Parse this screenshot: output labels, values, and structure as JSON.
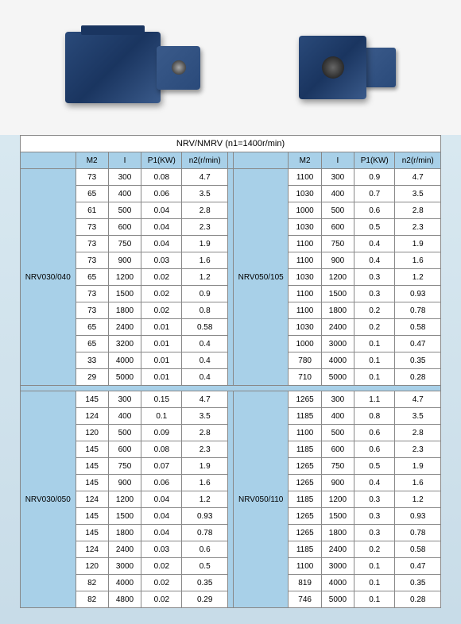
{
  "title": "NRV/NMRV  (n1=1400r/min)",
  "headers": [
    "M2",
    "I",
    "P1(KW)",
    "n2(r/min)"
  ],
  "groups": [
    {
      "label": "NRV030/040",
      "rows": [
        [
          "73",
          "300",
          "0.08",
          "4.7"
        ],
        [
          "65",
          "400",
          "0.06",
          "3.5"
        ],
        [
          "61",
          "500",
          "0.04",
          "2.8"
        ],
        [
          "73",
          "600",
          "0.04",
          "2.3"
        ],
        [
          "73",
          "750",
          "0.04",
          "1.9"
        ],
        [
          "73",
          "900",
          "0.03",
          "1.6"
        ],
        [
          "65",
          "1200",
          "0.02",
          "1.2"
        ],
        [
          "73",
          "1500",
          "0.02",
          "0.9"
        ],
        [
          "73",
          "1800",
          "0.02",
          "0.8"
        ],
        [
          "65",
          "2400",
          "0.01",
          "0.58"
        ],
        [
          "65",
          "3200",
          "0.01",
          "0.4"
        ],
        [
          "33",
          "4000",
          "0.01",
          "0.4"
        ],
        [
          "29",
          "5000",
          "0.01",
          "0.4"
        ]
      ]
    },
    {
      "label": "NRV050/105",
      "rows": [
        [
          "1100",
          "300",
          "0.9",
          "4.7"
        ],
        [
          "1030",
          "400",
          "0.7",
          "3.5"
        ],
        [
          "1000",
          "500",
          "0.6",
          "2.8"
        ],
        [
          "1030",
          "600",
          "0.5",
          "2.3"
        ],
        [
          "1100",
          "750",
          "0.4",
          "1.9"
        ],
        [
          "1100",
          "900",
          "0.4",
          "1.6"
        ],
        [
          "1030",
          "1200",
          "0.3",
          "1.2"
        ],
        [
          "1100",
          "1500",
          "0.3",
          "0.93"
        ],
        [
          "1100",
          "1800",
          "0.2",
          "0.78"
        ],
        [
          "1030",
          "2400",
          "0.2",
          "0.58"
        ],
        [
          "1000",
          "3000",
          "0.1",
          "0.47"
        ],
        [
          "780",
          "4000",
          "0.1",
          "0.35"
        ],
        [
          "710",
          "5000",
          "0.1",
          "0.28"
        ]
      ]
    },
    {
      "label": "NRV030/050",
      "rows": [
        [
          "145",
          "300",
          "0.15",
          "4.7"
        ],
        [
          "124",
          "400",
          "0.1",
          "3.5"
        ],
        [
          "120",
          "500",
          "0.09",
          "2.8"
        ],
        [
          "145",
          "600",
          "0.08",
          "2.3"
        ],
        [
          "145",
          "750",
          "0.07",
          "1.9"
        ],
        [
          "145",
          "900",
          "0.06",
          "1.6"
        ],
        [
          "124",
          "1200",
          "0.04",
          "1.2"
        ],
        [
          "145",
          "1500",
          "0.04",
          "0.93"
        ],
        [
          "145",
          "1800",
          "0.04",
          "0.78"
        ],
        [
          "124",
          "2400",
          "0.03",
          "0.6"
        ],
        [
          "120",
          "3000",
          "0.02",
          "0.5"
        ],
        [
          "82",
          "4000",
          "0.02",
          "0.35"
        ],
        [
          "82",
          "4800",
          "0.02",
          "0.29"
        ]
      ]
    },
    {
      "label": "NRV050/110",
      "rows": [
        [
          "1265",
          "300",
          "1.1",
          "4.7"
        ],
        [
          "1185",
          "400",
          "0.8",
          "3.5"
        ],
        [
          "1100",
          "500",
          "0.6",
          "2.8"
        ],
        [
          "1185",
          "600",
          "0.6",
          "2.3"
        ],
        [
          "1265",
          "750",
          "0.5",
          "1.9"
        ],
        [
          "1265",
          "900",
          "0.4",
          "1.6"
        ],
        [
          "1185",
          "1200",
          "0.3",
          "1.2"
        ],
        [
          "1265",
          "1500",
          "0.3",
          "0.93"
        ],
        [
          "1265",
          "1800",
          "0.3",
          "0.78"
        ],
        [
          "1185",
          "2400",
          "0.2",
          "0.58"
        ],
        [
          "1100",
          "3000",
          "0.1",
          "0.47"
        ],
        [
          "819",
          "4000",
          "0.1",
          "0.35"
        ],
        [
          "746",
          "5000",
          "0.1",
          "0.28"
        ]
      ]
    }
  ],
  "colors": {
    "header_bg": "#a8d0e8",
    "border": "#888888",
    "page_bg_top": "#d8e8f0",
    "page_bg_bottom": "#c8dce8",
    "gearbox_blue": "#2a4a7a"
  }
}
